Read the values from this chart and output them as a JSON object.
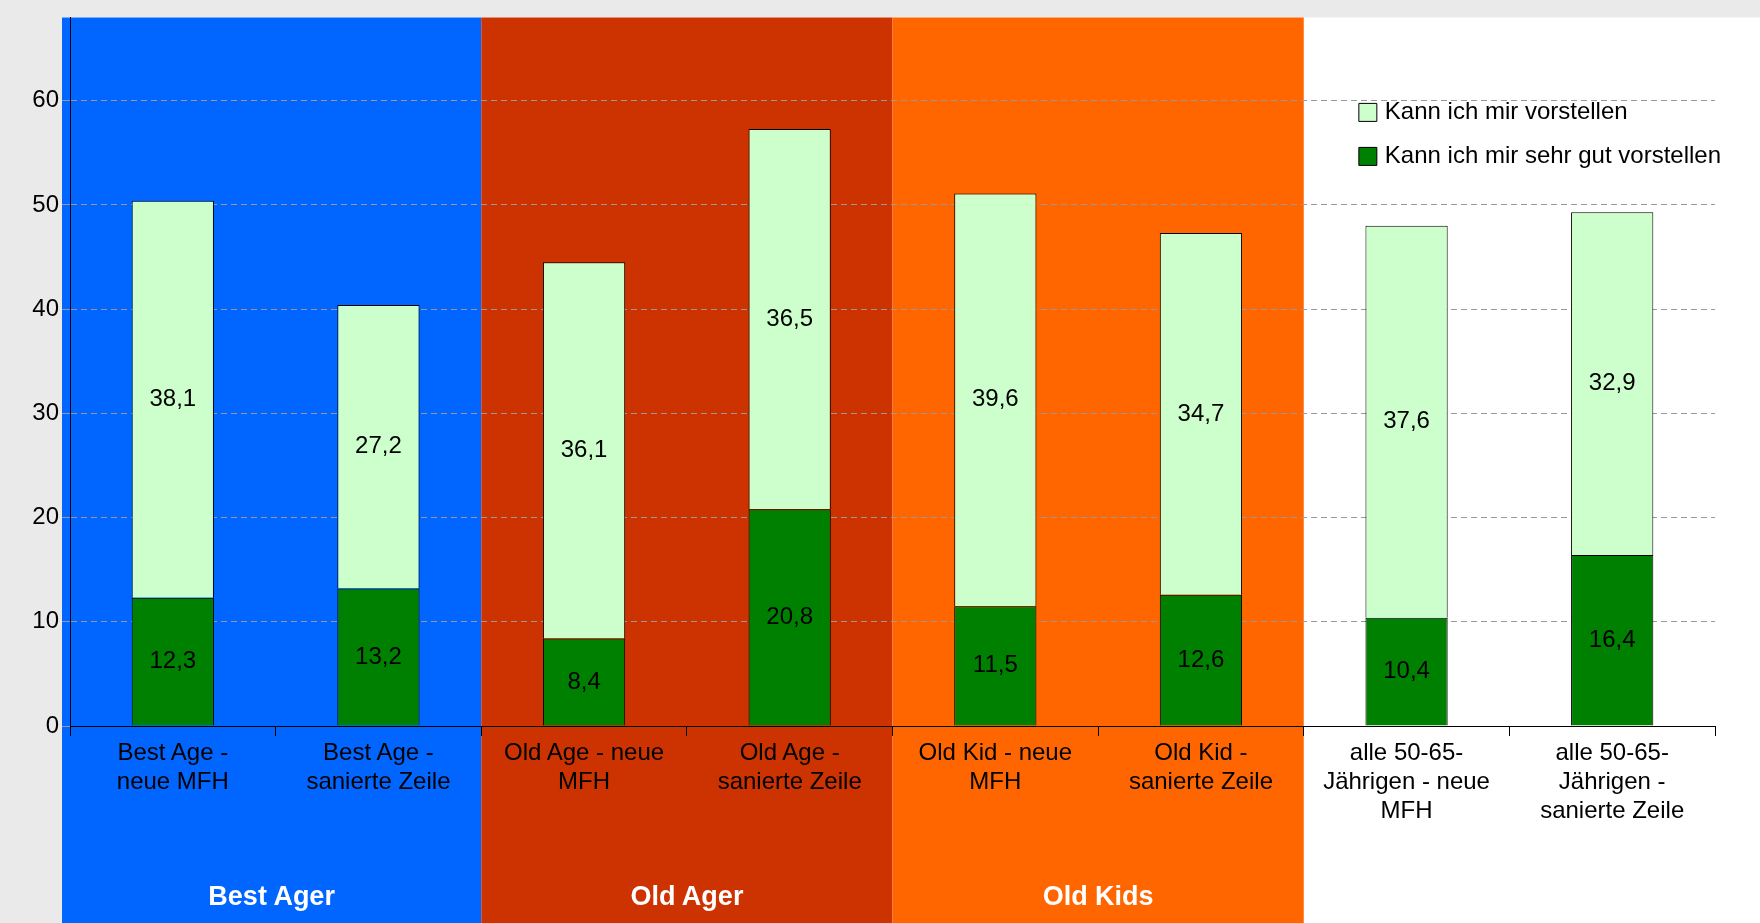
{
  "chart_data": {
    "type": "bar",
    "stacked": true,
    "categories": [
      "Best Age - neue MFH",
      "Best Age - sanierte Zeile",
      "Old Age - neue MFH",
      "Old Age - sanierte Zeile",
      "Old Kid - neue MFH",
      "Old Kid - sanierte Zeile",
      "alle 50-65-Jährigen - neue MFH",
      "alle 50-65-Jährigen - sanierte Zeile"
    ],
    "series": [
      {
        "name": "Kann ich mir sehr gut vorstellen",
        "color": "#008000",
        "values": [
          12.3,
          13.2,
          8.4,
          20.8,
          11.5,
          12.6,
          10.4,
          16.4
        ],
        "value_labels": [
          "12,3",
          "13,2",
          "8,4",
          "20,8",
          "11,5",
          "12,6",
          "10,4",
          "16,4"
        ]
      },
      {
        "name": "Kann ich mir vorstellen",
        "color": "#ccffcc",
        "values": [
          38.1,
          27.2,
          36.1,
          36.5,
          39.6,
          34.7,
          37.6,
          32.9
        ],
        "value_labels": [
          "38,1",
          "27,2",
          "36,1",
          "36,5",
          "39,6",
          "34,7",
          "37,6",
          "32,9"
        ]
      }
    ],
    "ylim": [
      0,
      68
    ],
    "yticks": [
      0,
      10,
      20,
      30,
      40,
      50,
      60
    ],
    "grid": "y",
    "legend": "top right",
    "bands": [
      {
        "axis": "x",
        "from": "Best Age - neue MFH",
        "to": "Best Age - sanierte Zeile",
        "label": "Best Ager",
        "color": "#0066ff"
      },
      {
        "axis": "x",
        "from": "Old Age - neue MFH",
        "to": "Old Age - sanierte Zeile",
        "label": "Old Ager",
        "color": "#cc3300"
      },
      {
        "axis": "x",
        "from": "Old Kid - neue MFH",
        "to": "Old Kid - sanierte Zeile",
        "label": "Old Kids",
        "color": "#ff6600"
      }
    ]
  }
}
